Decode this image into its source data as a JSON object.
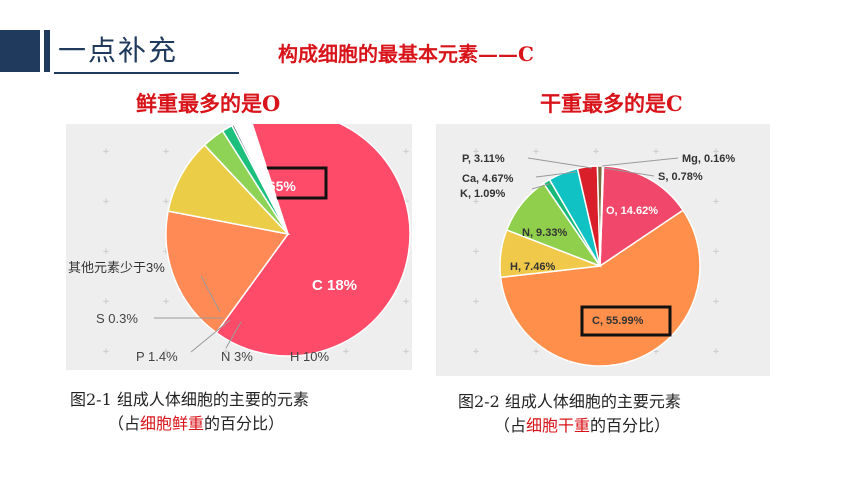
{
  "header": {
    "section_tag": "一点补充",
    "title": "构成细胞的最基本元素——C"
  },
  "left": {
    "subtitle": "鲜重最多的是O",
    "caption_line1": "图2-1  组成人体细胞的主要的元素",
    "caption_open": "（占",
    "caption_highlight": "细胞鲜重",
    "caption_close": "的百分比）"
  },
  "right": {
    "subtitle": "干重最多的是C",
    "caption_line1": "图2-2  组成人体细胞的主要元素",
    "caption_open": "（占",
    "caption_highlight": "细胞干重",
    "caption_close": "的百分比）"
  },
  "chart_data": [
    {
      "type": "pie",
      "slices": [
        {
          "label": "O.65%",
          "value": 65,
          "color": "#ff4b6a"
        },
        {
          "label": "C 18%",
          "value": 18,
          "color": "#ff8a55"
        },
        {
          "label": "H 10%",
          "value": 10,
          "color": "#eccd48"
        },
        {
          "label": "N 3%",
          "value": 3,
          "color": "#8ed355"
        },
        {
          "label": "P 1.4%",
          "value": 1.4,
          "color": "#1dbf7c"
        },
        {
          "label": "S 0.3%",
          "value": 0.3,
          "color": "#5d6e80"
        },
        {
          "label": "其他元素少于3%",
          "value": 2.3,
          "color": "#ffffff"
        }
      ]
    },
    {
      "type": "pie",
      "slices": [
        {
          "label": "O, 14.62%",
          "value": 14.62,
          "color": "#f0476a"
        },
        {
          "label": "C, 55.99%",
          "value": 55.99,
          "color": "#ff8f4a"
        },
        {
          "label": "H, 7.46%",
          "value": 7.46,
          "color": "#f1c94a"
        },
        {
          "label": "N, 9.33%",
          "value": 9.33,
          "color": "#8fcf4c"
        },
        {
          "label": "K, 1.09%",
          "value": 1.09,
          "color": "#17b87a"
        },
        {
          "label": "Ca, 4.67%",
          "value": 4.67,
          "color": "#11c2c4"
        },
        {
          "label": "P, 3.11%",
          "value": 3.11,
          "color": "#d81f2a"
        },
        {
          "label": "S, 0.78%",
          "value": 0.78,
          "color": "#7a6a40"
        },
        {
          "label": "Mg, 0.16%",
          "value": 0.16,
          "color": "#a3a37a"
        }
      ]
    }
  ]
}
